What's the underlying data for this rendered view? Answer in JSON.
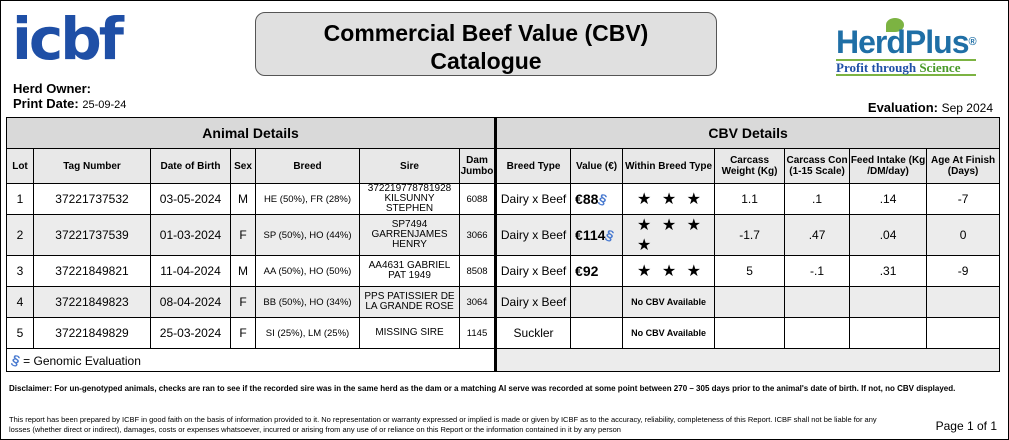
{
  "header": {
    "logo_text": "icbf",
    "herd_owner_label": "Herd Owner:",
    "print_date_label": "Print Date:",
    "print_date": "25-09-24",
    "title_line1": "Commercial Beef Value (CBV)",
    "title_line2": "Catalogue",
    "brand_name": "HerdPlus",
    "brand_reg": "®",
    "brand_tagline_a": "Profit through",
    "brand_tagline_b": "Science",
    "evaluation_label": "Evaluation:",
    "evaluation_value": "Sep 2024"
  },
  "sections": {
    "animal": "Animal Details",
    "cbv": "CBV Details"
  },
  "columns": {
    "lot": "Lot",
    "tag": "Tag Number",
    "dob": "Date of Birth",
    "sex": "Sex",
    "breed": "Breed",
    "sire": "Sire",
    "dam": "Dam Jumbo",
    "breed_type": "Breed Type",
    "value": "Value (€)",
    "within": "Within Breed Type",
    "carcass_weight": "Carcass Weight (Kg)",
    "carcass_con": "Carcass Con (1-15 Scale)",
    "feed_intake": "Feed Intake (Kg /DM/day)",
    "age_finish": "Age At Finish (Days)"
  },
  "rows": [
    {
      "lot": "1",
      "tag": "37221737532",
      "dob": "03-05-2024",
      "sex": "M",
      "breed": "HE (50%), FR (28%)",
      "sire": "372219778781928 KILSUNNY STEPHEN",
      "dam": "6088",
      "breed_type": "Dairy x Beef",
      "value": "€88",
      "within": "★ ★ ★",
      "carcass_weight": "1.1",
      "carcass_con": ".1",
      "feed_intake": ".14",
      "age_finish": "-7"
    },
    {
      "lot": "2",
      "tag": "37221737539",
      "dob": "01-03-2024",
      "sex": "F",
      "breed": "SP (50%), HO (44%)",
      "sire": "SP7494 GARRENJAMES HENRY",
      "dam": "3066",
      "breed_type": "Dairy x Beef",
      "value": "€114",
      "within": "★ ★ ★ ★",
      "carcass_weight": "-1.7",
      "carcass_con": ".47",
      "feed_intake": ".04",
      "age_finish": "0"
    },
    {
      "lot": "3",
      "tag": "37221849821",
      "dob": "11-04-2024",
      "sex": "M",
      "breed": "AA (50%), HO (50%)",
      "sire": "AA4631 GABRIEL PAT 1949",
      "dam": "8508",
      "breed_type": "Dairy x Beef",
      "value": "€92",
      "within": "★ ★ ★",
      "carcass_weight": "5",
      "carcass_con": "-.1",
      "feed_intake": ".31",
      "age_finish": "-9"
    },
    {
      "lot": "4",
      "tag": "37221849823",
      "dob": "08-04-2024",
      "sex": "F",
      "breed": "BB (50%), HO (34%)",
      "sire": "PPS PATISSIER DE LA GRANDE ROSE",
      "dam": "3064",
      "breed_type": "Dairy x Beef",
      "value": "",
      "within": "No CBV Available",
      "carcass_weight": "",
      "carcass_con": "",
      "feed_intake": "",
      "age_finish": ""
    },
    {
      "lot": "5",
      "tag": "37221849829",
      "dob": "25-03-2024",
      "sex": "F",
      "breed": "SI (25%), LM (25%)",
      "sire": "MISSING SIRE",
      "dam": "1145",
      "breed_type": "Suckler",
      "value": "",
      "within": "No CBV Available",
      "carcass_weight": "",
      "carcass_con": "",
      "feed_intake": "",
      "age_finish": ""
    }
  ],
  "legend": "= Genomic Evaluation",
  "disclaimer": "Disclaimer: For un-genotyped animals, checks are ran to see if the recorded sire was in the same herd as the dam or a matching AI serve was recorded at some point between 270 – 305 days prior to the animal's date of birth. If not, no CBV displayed.",
  "footer": "This report has been prepared by ICBF in good faith on the basis of information provided to it. No representation or warranty expressed or implied is made or given by ICBF as to the accuracy, reliability, completeness of this Report. ICBF shall not be liable for any losses (whether direct or indirect), damages, costs or expenses whatsoever, incurred or arising from any use of or reliance on this Report or the information contained in it by any person",
  "page_label": "Page 1 of 1",
  "colors": {
    "icbf_blue": "#1f4fa6",
    "herdplus_green": "#7cb342",
    "dna_blue": "#4a7bd0",
    "header_grey": "#d9d9d9"
  }
}
